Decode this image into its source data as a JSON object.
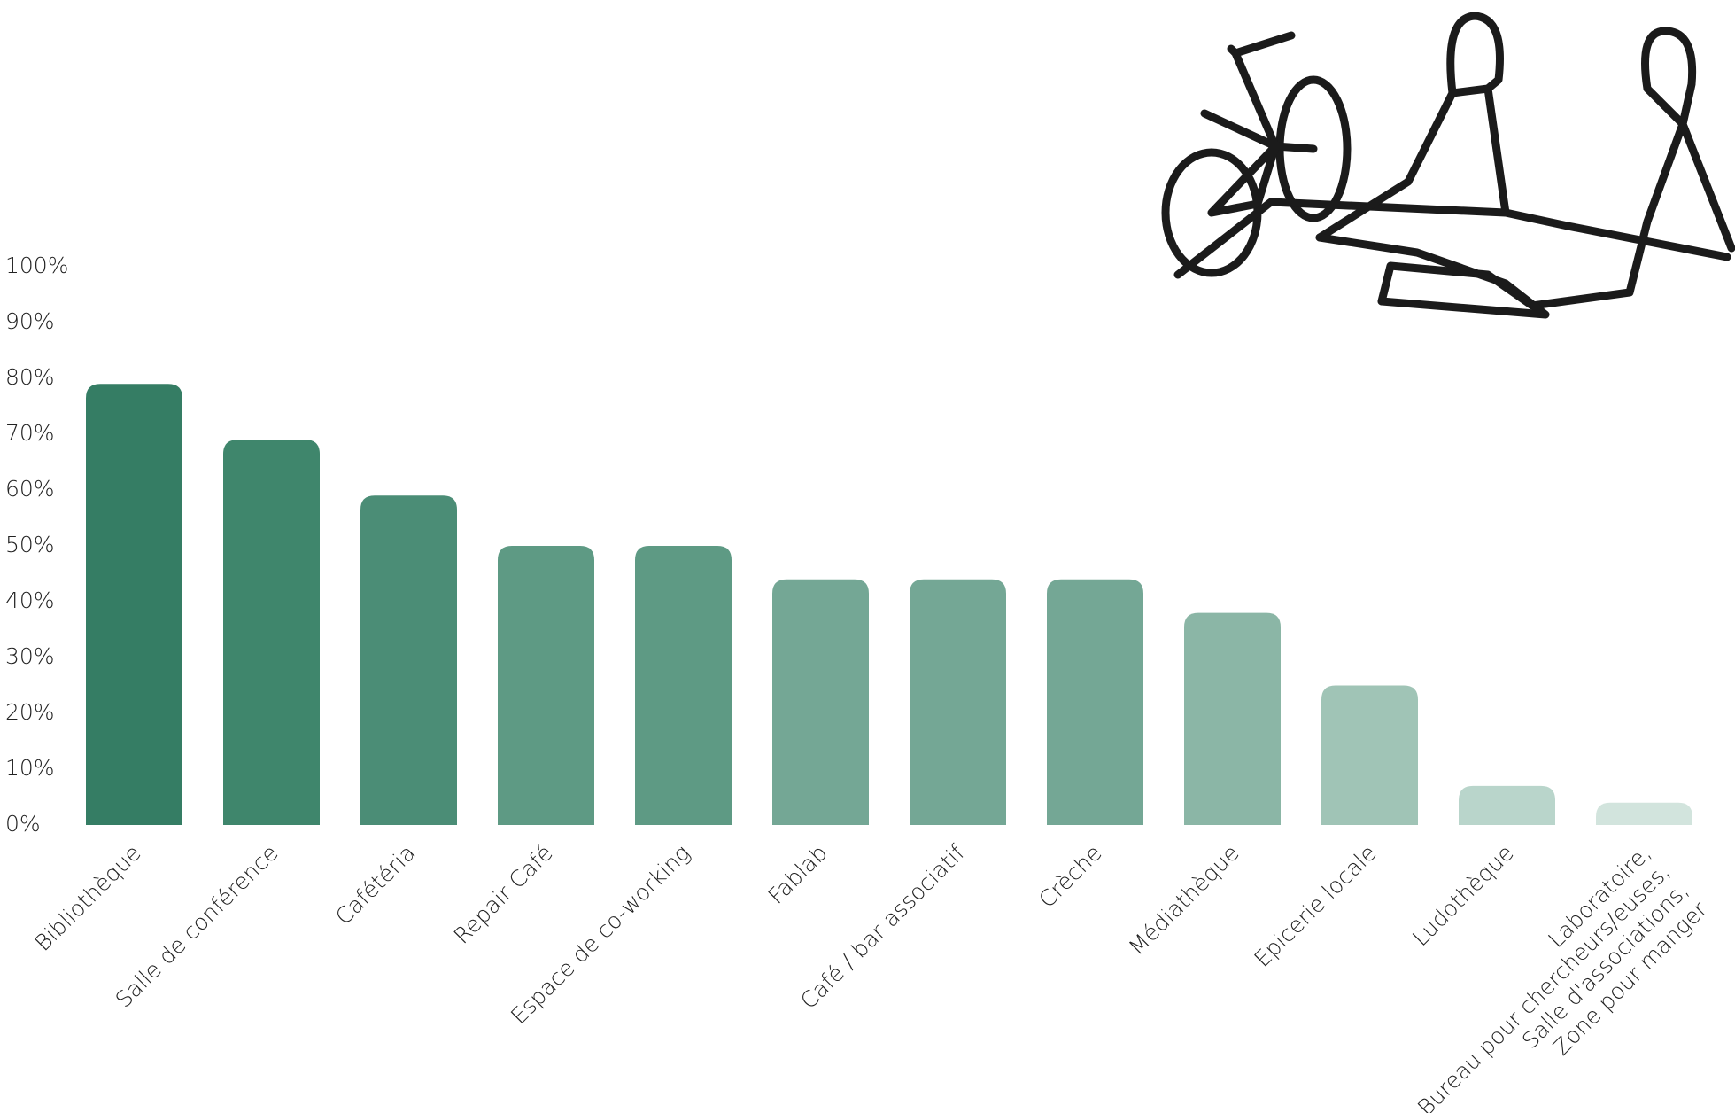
{
  "chart_data": {
    "type": "bar",
    "categories": [
      "Bibliothèque",
      "Salle de conférence",
      "Cafétéria",
      "Repair Café",
      "Espace de co-working",
      "Fablab",
      "Café / bar associatif",
      "Crèche",
      "Médiathèque",
      "Epicerie locale",
      "Ludothèque",
      "Laboratoire,\nBureau pour chercheurs/euses,\nSalle d'associations,\nZone pour manger"
    ],
    "values": [
      79,
      69,
      59,
      50,
      50,
      44,
      44,
      44,
      38,
      25,
      7,
      4
    ],
    "colors": [
      "#357d64",
      "#3f866c",
      "#4b8d76",
      "#5e9a84",
      "#5e9a84",
      "#74a795",
      "#74a795",
      "#74a795",
      "#8bb6a6",
      "#a0c4b6",
      "#b9d5cb",
      "#d2e4dd"
    ],
    "ylim": [
      0,
      100
    ],
    "yticks": [
      {
        "value": 0,
        "label": "0%"
      },
      {
        "value": 10,
        "label": "10%"
      },
      {
        "value": 20,
        "label": "20%"
      },
      {
        "value": 30,
        "label": "30%"
      },
      {
        "value": 40,
        "label": "40%"
      },
      {
        "value": 50,
        "label": "50%"
      },
      {
        "value": 60,
        "label": "60%"
      },
      {
        "value": 70,
        "label": "70%"
      },
      {
        "value": 80,
        "label": "80%"
      },
      {
        "value": 90,
        "label": "90%"
      },
      {
        "value": 100,
        "label": "100%"
      }
    ],
    "grid": false
  }
}
